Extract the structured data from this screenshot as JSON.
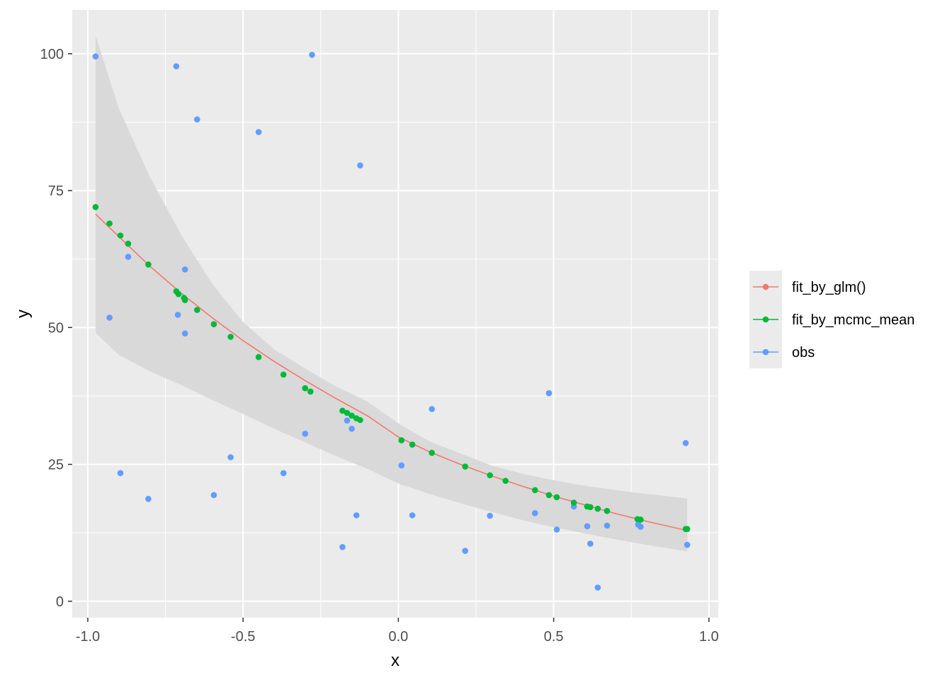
{
  "chart_data": {
    "type": "scatter",
    "xlabel": "x",
    "ylabel": "y",
    "xlim": [
      -1.05,
      1.03
    ],
    "ylim": [
      -3,
      108
    ],
    "x_ticks": [
      {
        "value": -1.0,
        "label": "-1.0"
      },
      {
        "value": -0.5,
        "label": "-0.5"
      },
      {
        "value": 0.0,
        "label": "0.0"
      },
      {
        "value": 0.5,
        "label": "0.5"
      },
      {
        "value": 1.0,
        "label": "1.0"
      }
    ],
    "y_ticks": [
      {
        "value": 0,
        "label": "0"
      },
      {
        "value": 25,
        "label": "25"
      },
      {
        "value": 50,
        "label": "50"
      },
      {
        "value": 75,
        "label": "75"
      },
      {
        "value": 100,
        "label": "100"
      }
    ],
    "x_minor": [
      -0.75,
      -0.25,
      0.25,
      0.75
    ],
    "y_minor": [
      12.5,
      37.5,
      62.5,
      87.5
    ],
    "grid": true,
    "legend_position": "right",
    "colors": {
      "panel": "#EBEBEB",
      "grid": "#FFFFFF",
      "ribbon": "#D9D9D9",
      "glm": "#F8766D",
      "mcmc": "#00BA38",
      "obs": "#619CFF"
    },
    "ribbon": {
      "x": [
        -0.975,
        -0.9,
        -0.8,
        -0.7,
        -0.6,
        -0.5,
        -0.4,
        -0.3,
        -0.2,
        -0.1,
        0.0,
        0.1,
        0.2,
        0.3,
        0.4,
        0.5,
        0.6,
        0.7,
        0.8,
        0.93
      ],
      "lower": [
        49,
        45,
        42,
        39.5,
        36.8,
        34.2,
        31.5,
        29,
        26.5,
        24.2,
        21.5,
        19.6,
        17.9,
        16.3,
        14.8,
        13.5,
        12.4,
        11.3,
        10.3,
        9.1
      ],
      "upper": [
        103.3,
        90,
        77.5,
        67,
        58,
        51,
        46,
        42.5,
        39.2,
        36.5,
        32.5,
        29.2,
        27,
        24.8,
        23.3,
        22.1,
        21.1,
        20.3,
        19.6,
        18.8
      ]
    },
    "series": [
      {
        "name": "fit_by_glm()",
        "type": "line",
        "x": [
          -0.975,
          -0.9,
          -0.8,
          -0.7,
          -0.6,
          -0.5,
          -0.4,
          -0.3,
          -0.2,
          -0.1,
          0.0,
          0.1,
          0.2,
          0.3,
          0.4,
          0.5,
          0.6,
          0.7,
          0.8,
          0.93
        ],
        "y": [
          70.7,
          66.6,
          61.2,
          56.3,
          51.8,
          47.6,
          43.8,
          40.3,
          37.0,
          33.9,
          30.0,
          27.3,
          25.0,
          22.9,
          21.0,
          19.2,
          17.6,
          16.0,
          14.6,
          12.9
        ]
      },
      {
        "name": "fit_by_mcmc_mean",
        "type": "scatter",
        "x": [
          -0.975,
          -0.93,
          -0.895,
          -0.87,
          -0.805,
          -0.715,
          -0.708,
          -0.69,
          -0.687,
          -0.648,
          -0.594,
          -0.54,
          -0.45,
          -0.37,
          -0.3,
          -0.283,
          -0.18,
          -0.165,
          -0.15,
          -0.135,
          -0.123,
          0.01,
          0.045,
          0.108,
          0.215,
          0.295,
          0.345,
          0.44,
          0.485,
          0.51,
          0.565,
          0.608,
          0.618,
          0.642,
          0.672,
          0.77,
          0.78,
          0.925,
          0.93
        ],
        "y": [
          72.0,
          69.0,
          66.8,
          65.3,
          61.5,
          56.6,
          56.1,
          55.4,
          55.0,
          53.2,
          50.6,
          48.3,
          44.6,
          41.4,
          38.9,
          38.3,
          34.8,
          34.4,
          33.9,
          33.4,
          33.1,
          29.4,
          28.6,
          27.1,
          24.6,
          23.0,
          22.0,
          20.3,
          19.4,
          19.0,
          18.0,
          17.3,
          17.2,
          16.9,
          16.5,
          15.0,
          14.9,
          13.2,
          13.2
        ]
      },
      {
        "name": "obs",
        "type": "scatter",
        "x": [
          -0.975,
          -0.93,
          -0.895,
          -0.87,
          -0.805,
          -0.715,
          -0.71,
          -0.687,
          -0.687,
          -0.648,
          -0.594,
          -0.54,
          -0.45,
          -0.37,
          -0.3,
          -0.278,
          -0.18,
          -0.165,
          -0.15,
          -0.135,
          -0.123,
          0.01,
          0.045,
          0.108,
          0.215,
          0.295,
          0.44,
          0.485,
          0.51,
          0.565,
          0.608,
          0.618,
          0.642,
          0.672,
          0.772,
          0.78,
          0.925,
          0.93
        ],
        "y": [
          99.5,
          51.8,
          23.4,
          62.9,
          18.7,
          97.7,
          52.3,
          60.6,
          48.9,
          88.0,
          19.4,
          26.3,
          85.7,
          23.4,
          30.6,
          99.8,
          9.9,
          33.0,
          31.5,
          15.7,
          79.6,
          24.8,
          15.7,
          35.1,
          9.2,
          15.6,
          16.1,
          38.0,
          13.1,
          17.3,
          13.7,
          10.5,
          2.5,
          13.8,
          14.0,
          13.6,
          28.9,
          10.3
        ]
      }
    ]
  },
  "legend": {
    "items": [
      {
        "label": "fit_by_glm()",
        "color_key": "glm"
      },
      {
        "label": "fit_by_mcmc_mean",
        "color_key": "mcmc"
      },
      {
        "label": "obs",
        "color_key": "obs"
      }
    ]
  }
}
